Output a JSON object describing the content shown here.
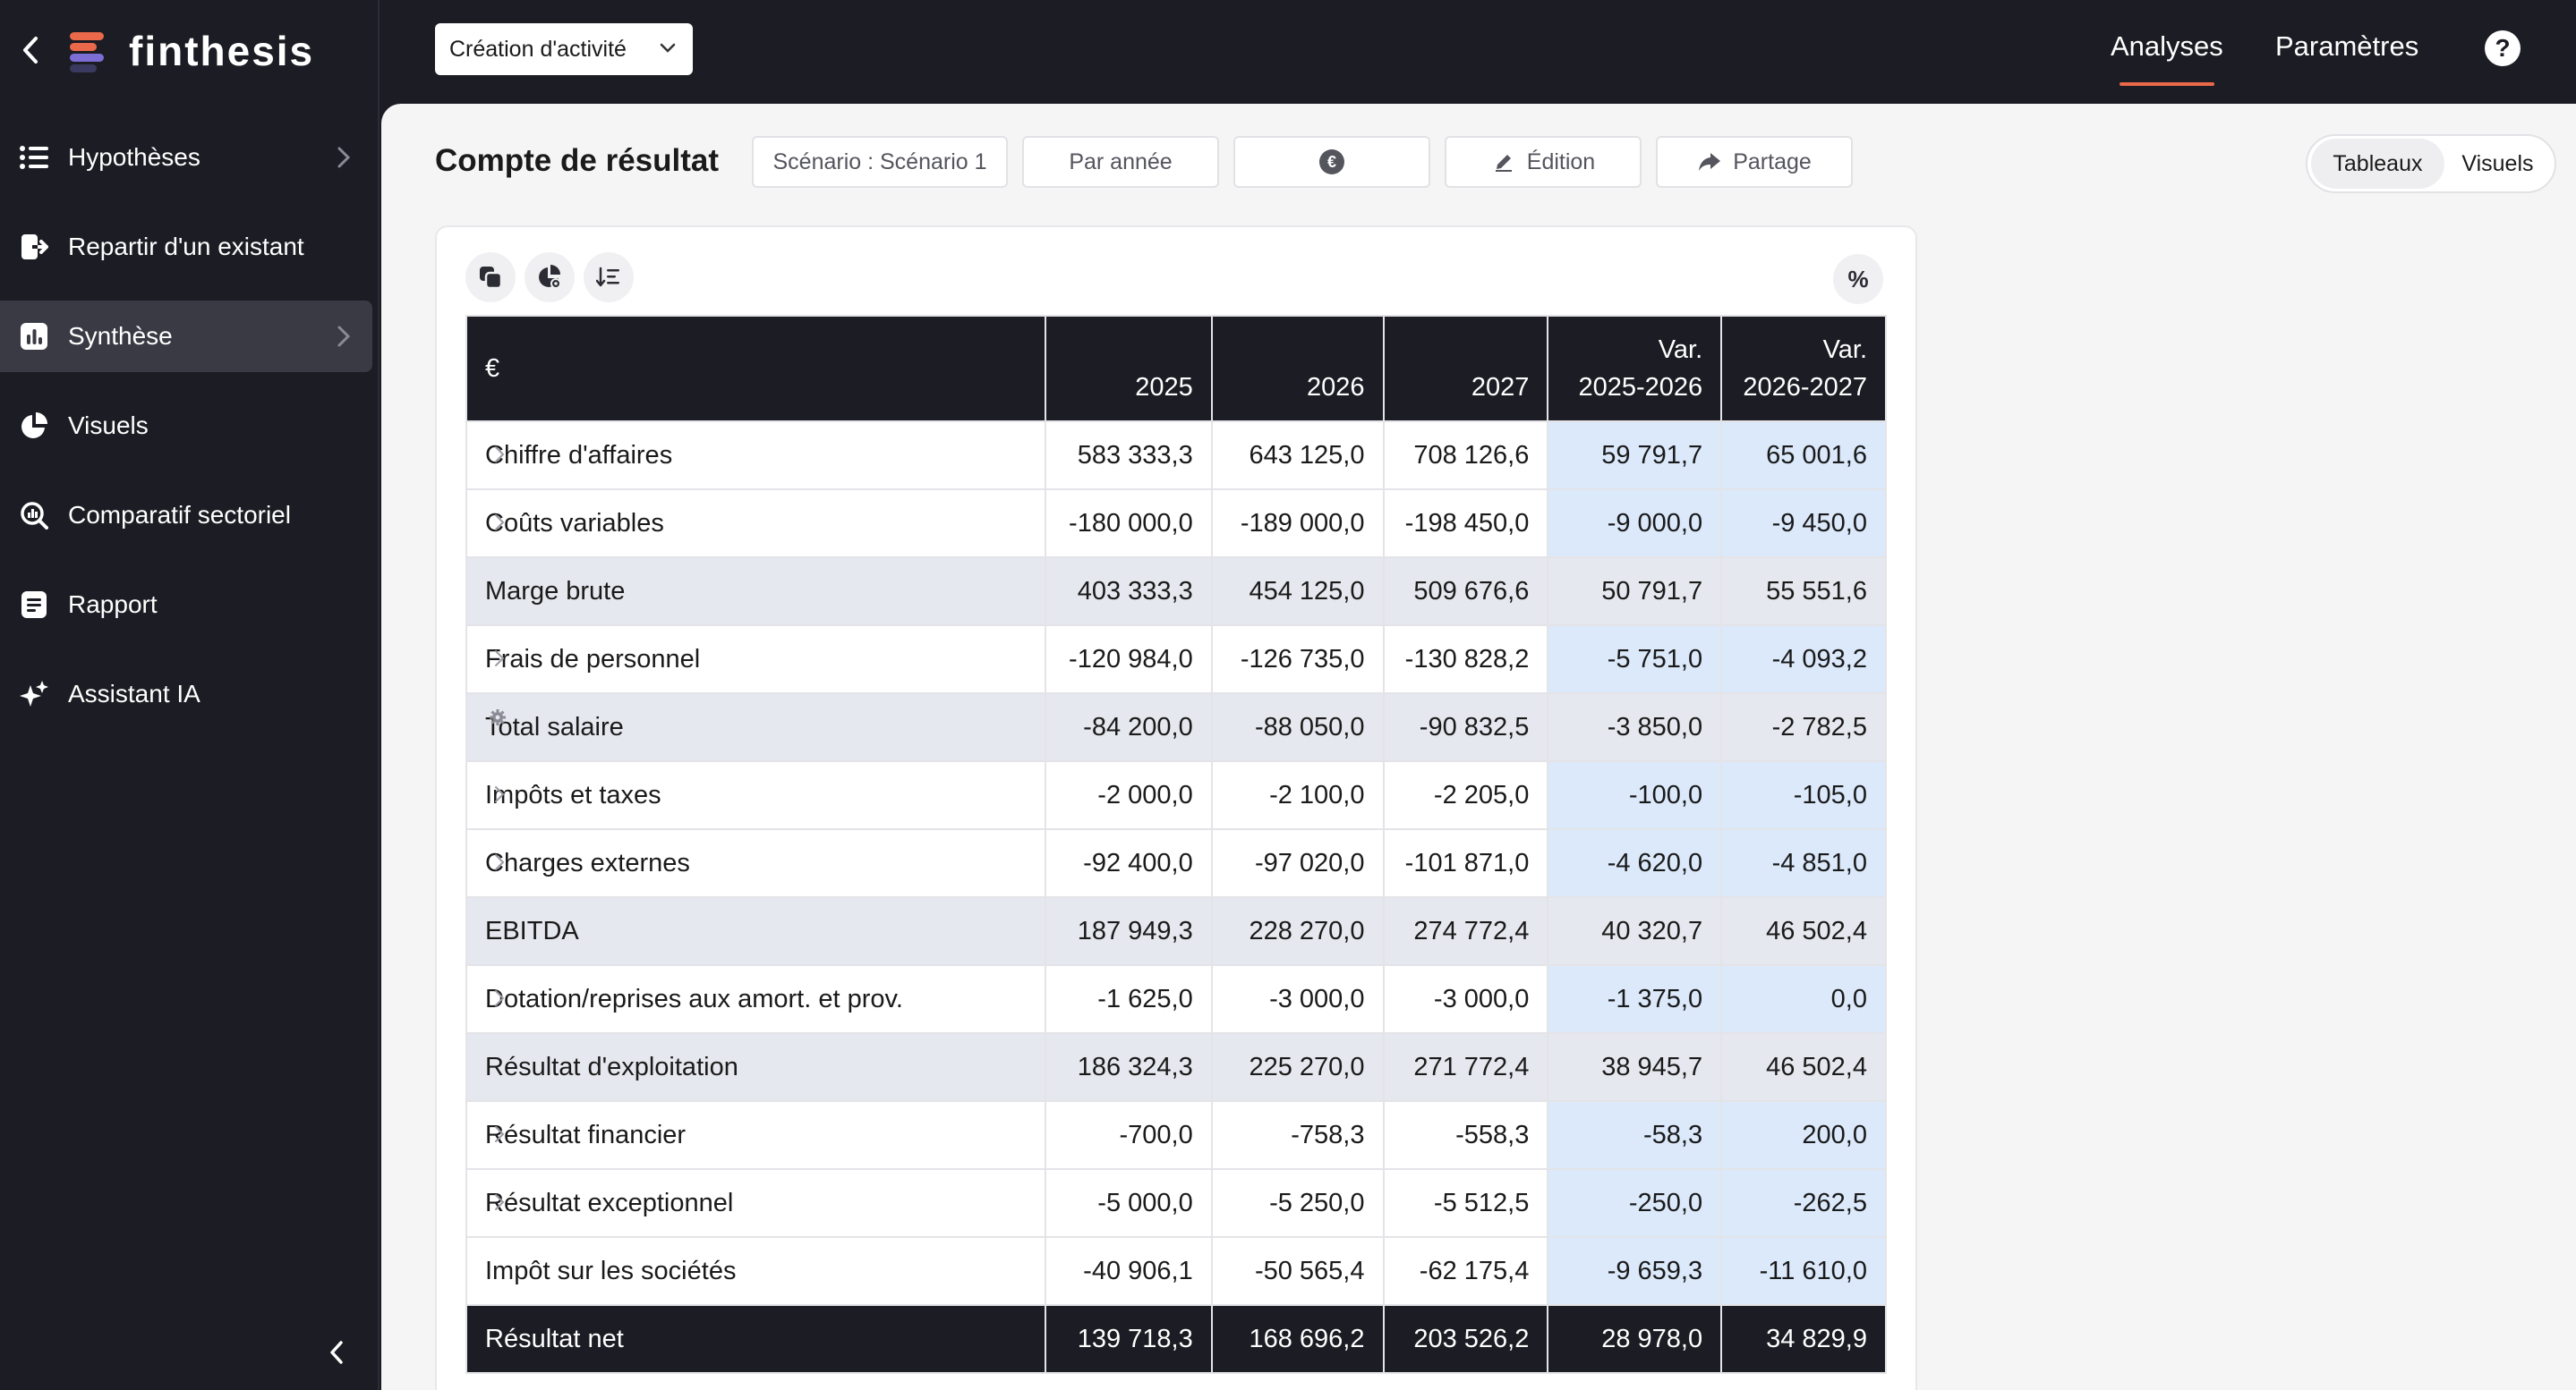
{
  "app": {
    "logo_text": "finthesis",
    "brand_colors": {
      "accent": "#e9694a",
      "logo_bars": [
        "#e9694a",
        "#7b6fd6",
        "#3a3a60"
      ]
    }
  },
  "sidebar": {
    "items": [
      {
        "label": "Hypothèses",
        "icon": "list-icon",
        "has_chevron": true,
        "active": false
      },
      {
        "label": "Repartir d'un existant",
        "icon": "import-icon",
        "has_chevron": false,
        "active": false
      },
      {
        "label": "Synthèse",
        "icon": "bar-chart-icon",
        "has_chevron": true,
        "active": true
      },
      {
        "label": "Visuels",
        "icon": "pie-chart-icon",
        "has_chevron": false,
        "active": false
      },
      {
        "label": "Comparatif sectoriel",
        "icon": "magnifier-chart-icon",
        "has_chevron": false,
        "active": false
      },
      {
        "label": "Rapport",
        "icon": "document-icon",
        "has_chevron": false,
        "active": false
      },
      {
        "label": "Assistant IA",
        "icon": "sparkle-icon",
        "has_chevron": false,
        "active": false
      }
    ]
  },
  "topbar": {
    "activity_select_value": "Création d'activité",
    "links": {
      "analyses": "Analyses",
      "parametres": "Paramètres"
    },
    "help_label": "?"
  },
  "page": {
    "title": "Compte de résultat",
    "controls": {
      "scenario": "Scénario : Scénario 1",
      "period": "Par année",
      "currency_symbol": "€",
      "edition": "Édition",
      "share": "Partage"
    },
    "view_toggle": {
      "tables": "Tableaux",
      "visuals": "Visuels",
      "selected": "Tableaux"
    },
    "percent_label": "%"
  },
  "table": {
    "columns": [
      "€",
      "2025",
      "2026",
      "2027",
      "Var.\n2025-2026",
      "Var.\n2026-2027"
    ],
    "header": {
      "unit": "€",
      "y1": "2025",
      "y2": "2026",
      "y3": "2027",
      "var1_a": "Var.",
      "var1_b": "2025-2026",
      "var2_a": "Var.",
      "var2_b": "2026-2027"
    },
    "rows": [
      {
        "label": "Chiffre d'affaires",
        "type": "expandable",
        "values": [
          "583 333,3",
          "643 125,0",
          "708 126,6",
          "59 791,7",
          "65 001,6"
        ]
      },
      {
        "label": "Coûts variables",
        "type": "expandable",
        "values": [
          "-180 000,0",
          "-189 000,0",
          "-198 450,0",
          "-9 000,0",
          "-9 450,0"
        ]
      },
      {
        "label": "Marge brute",
        "type": "subtotal",
        "values": [
          "403 333,3",
          "454 125,0",
          "509 676,6",
          "50 791,7",
          "55 551,6"
        ]
      },
      {
        "label": "Frais de personnel",
        "type": "expandable",
        "values": [
          "-120 984,0",
          "-126 735,0",
          "-130 828,2",
          "-5 751,0",
          "-4 093,2"
        ]
      },
      {
        "label": "Total salaire",
        "type": "subtotal-gear",
        "values": [
          "-84 200,0",
          "-88 050,0",
          "-90 832,5",
          "-3 850,0",
          "-2 782,5"
        ]
      },
      {
        "label": "Impôts et taxes",
        "type": "expandable",
        "values": [
          "-2 000,0",
          "-2 100,0",
          "-2 205,0",
          "-100,0",
          "-105,0"
        ]
      },
      {
        "label": "Charges externes",
        "type": "expandable",
        "values": [
          "-92 400,0",
          "-97 020,0",
          "-101 871,0",
          "-4 620,0",
          "-4 851,0"
        ]
      },
      {
        "label": "EBITDA",
        "type": "subtotal",
        "values": [
          "187 949,3",
          "228 270,0",
          "274 772,4",
          "40 320,7",
          "46 502,4"
        ]
      },
      {
        "label": "Dotation/reprises aux amort. et prov.",
        "type": "expandable",
        "values": [
          "-1 625,0",
          "-3 000,0",
          "-3 000,0",
          "-1 375,0",
          "0,0"
        ]
      },
      {
        "label": "Résultat d'exploitation",
        "type": "subtotal",
        "values": [
          "186 324,3",
          "225 270,0",
          "271 772,4",
          "38 945,7",
          "46 502,4"
        ]
      },
      {
        "label": "Résultat financier",
        "type": "expandable",
        "values": [
          "-700,0",
          "-758,3",
          "-558,3",
          "-58,3",
          "200,0"
        ]
      },
      {
        "label": "Résultat exceptionnel",
        "type": "expandable",
        "values": [
          "-5 000,0",
          "-5 250,0",
          "-5 512,5",
          "-250,0",
          "-262,5"
        ]
      },
      {
        "label": "Impôt sur les sociétés",
        "type": "plain",
        "values": [
          "-40 906,1",
          "-50 565,4",
          "-62 175,4",
          "-9 659,3",
          "-11 610,0"
        ]
      },
      {
        "label": "Résultat net",
        "type": "total",
        "values": [
          "139 718,3",
          "168 696,2",
          "203 526,2",
          "28 978,0",
          "34 829,9"
        ]
      }
    ]
  }
}
